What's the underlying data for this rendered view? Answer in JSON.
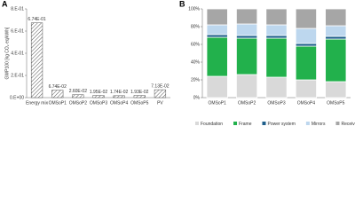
{
  "chart_data": [
    {
      "type": "bar",
      "label": "A",
      "y_label": "GWP100 [kg CO₂ eq/kWh]",
      "categories": [
        "Energy mix",
        "OMSoP1",
        "OMSoP2",
        "OMSoP3",
        "OMSoP4",
        "OMSoP5",
        "PV"
      ],
      "values": [
        0.674,
        0.0674,
        0.026,
        0.0195,
        0.0174,
        0.0193,
        0.0713
      ],
      "value_labels": [
        "6.74E-01",
        "6.74E-02",
        "2.60E-02",
        "1.95E-02",
        "1.74E-02",
        "1.93E-02",
        "7.13E-02"
      ],
      "color": "#555555",
      "hatch": true,
      "ylim": [
        0,
        0.8
      ],
      "yticks": [
        {
          "value": 0,
          "label": "0.E+00"
        },
        {
          "value": 0.2,
          "label": "2.E-01"
        },
        {
          "value": 0.4,
          "label": "4.E-01"
        },
        {
          "value": 0.6,
          "label": "6.E-01"
        },
        {
          "value": 0.8,
          "label": "8.E-01"
        }
      ]
    },
    {
      "type": "stacked_bar",
      "label": "B",
      "categories": [
        "OMSoP1",
        "OMSoP2",
        "OMSoP3",
        "OMSoP4",
        "OMSoP5"
      ],
      "series": [
        {
          "name": "Foundation",
          "color": "#d9d9d9",
          "values": [
            24,
            26,
            23,
            20,
            18
          ]
        },
        {
          "name": "Frame",
          "color": "#22b14c",
          "values": [
            44,
            41,
            44,
            38,
            48
          ]
        },
        {
          "name": "Power system",
          "color": "#1f5f8b",
          "values": [
            3,
            3,
            3,
            3,
            3
          ]
        },
        {
          "name": "Mirrors",
          "color": "#bdd7ee",
          "values": [
            11,
            13,
            12,
            17,
            12
          ]
        },
        {
          "name": "Receiver",
          "color": "#a6a6a6",
          "values": [
            18,
            17,
            18,
            22,
            19
          ]
        }
      ],
      "ylim": [
        0,
        100
      ],
      "yticks": [
        {
          "value": 0,
          "label": "0%"
        },
        {
          "value": 20,
          "label": "20%"
        },
        {
          "value": 40,
          "label": "40%"
        },
        {
          "value": 60,
          "label": "60%"
        },
        {
          "value": 80,
          "label": "80%"
        },
        {
          "value": 100,
          "label": "100%"
        }
      ],
      "legend": "bottom"
    }
  ]
}
